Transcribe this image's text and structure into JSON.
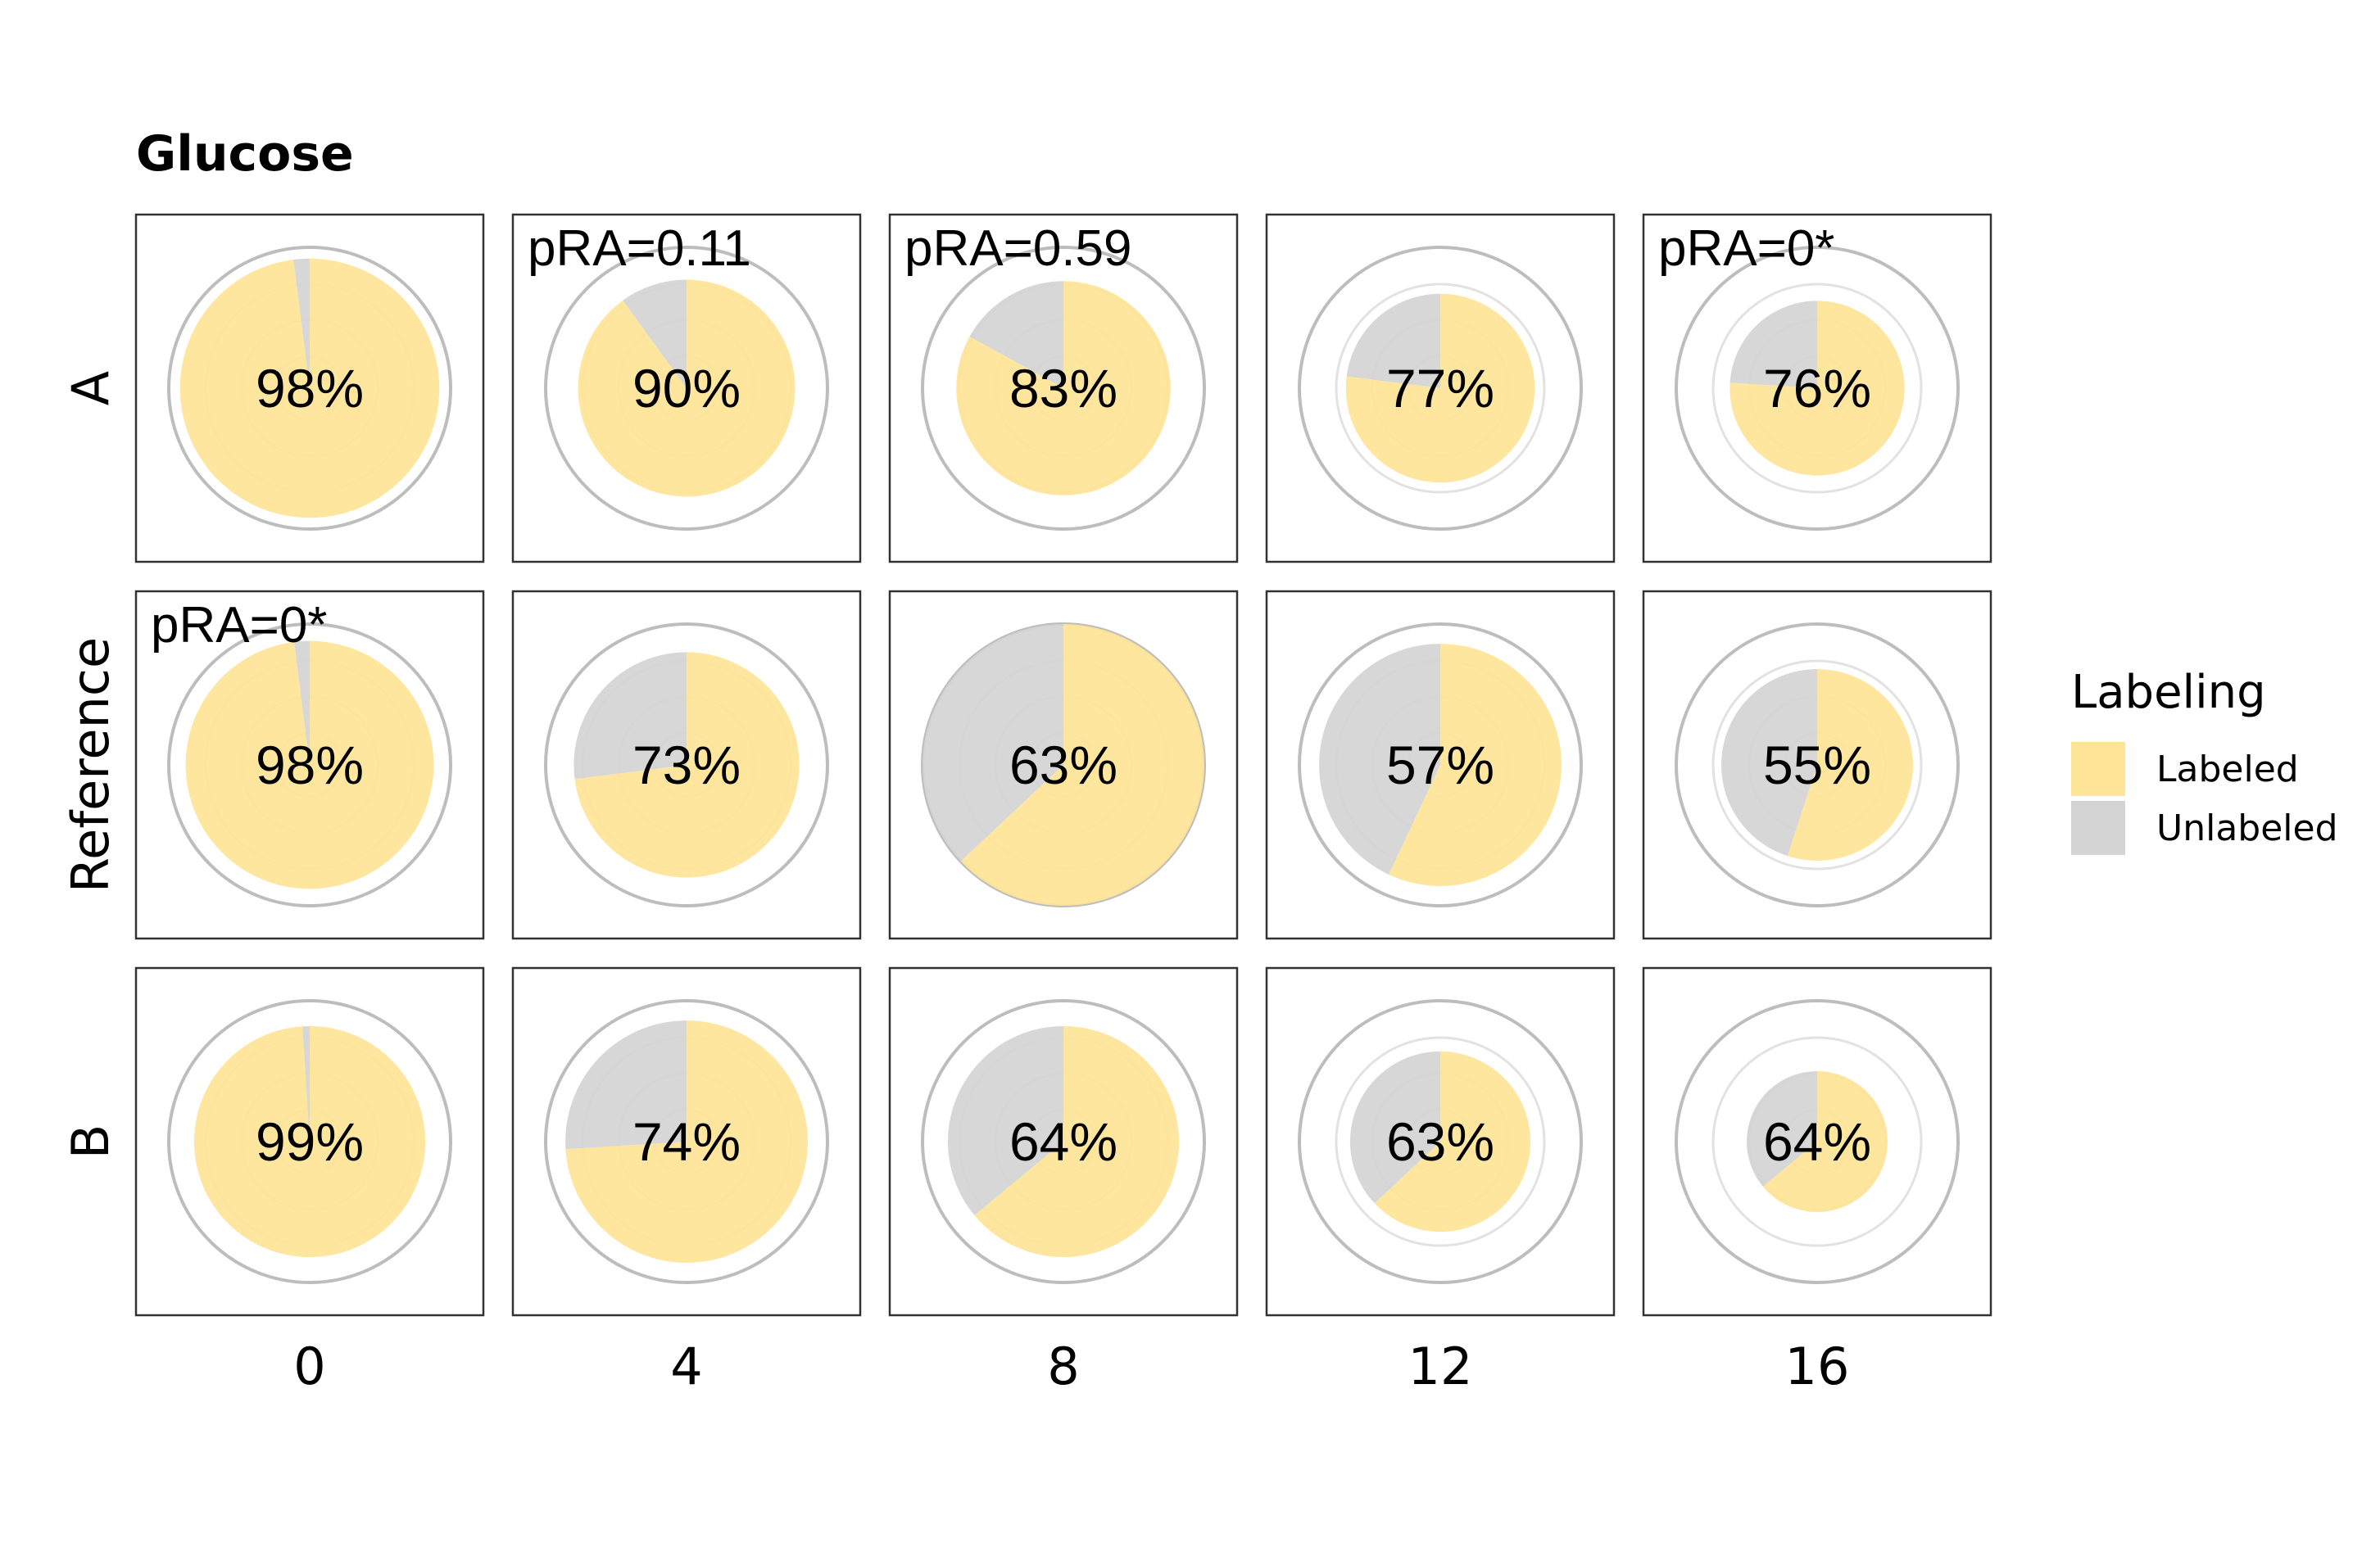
{
  "chart_data": {
    "type": "pie",
    "title": "Glucose",
    "rows": [
      "A",
      "Reference",
      "B"
    ],
    "columns": [
      "0",
      "4",
      "8",
      "12",
      "16"
    ],
    "legend": {
      "title": "Labeling",
      "position": "right",
      "items": [
        {
          "label": "Labeled",
          "color": "#FEE497"
        },
        {
          "label": "Unlabeled",
          "color": "#D4D4D4"
        }
      ]
    },
    "grid": true,
    "panels": [
      {
        "row": "A",
        "column": "0",
        "labeled_pct": 98,
        "label": "98%",
        "pra": "",
        "size": 0.92
      },
      {
        "row": "A",
        "column": "4",
        "labeled_pct": 90,
        "label": "90%",
        "pra": "pRA=0.11",
        "size": 0.77
      },
      {
        "row": "A",
        "column": "8",
        "labeled_pct": 83,
        "label": "83%",
        "pra": "pRA=0.59",
        "size": 0.76
      },
      {
        "row": "A",
        "column": "12",
        "labeled_pct": 77,
        "label": "77%",
        "pra": "",
        "size": 0.67
      },
      {
        "row": "A",
        "column": "16",
        "labeled_pct": 76,
        "label": "76%",
        "pra": "pRA=0*",
        "size": 0.62
      },
      {
        "row": "Reference",
        "column": "0",
        "labeled_pct": 98,
        "label": "98%",
        "pra": "pRA=0*",
        "size": 0.88
      },
      {
        "row": "Reference",
        "column": "4",
        "labeled_pct": 73,
        "label": "73%",
        "pra": "",
        "size": 0.8
      },
      {
        "row": "Reference",
        "column": "8",
        "labeled_pct": 63,
        "label": "63%",
        "pra": "",
        "size": 1.0
      },
      {
        "row": "Reference",
        "column": "12",
        "labeled_pct": 57,
        "label": "57%",
        "pra": "",
        "size": 0.86
      },
      {
        "row": "Reference",
        "column": "16",
        "labeled_pct": 55,
        "label": "55%",
        "pra": "",
        "size": 0.68
      },
      {
        "row": "B",
        "column": "0",
        "labeled_pct": 99,
        "label": "99%",
        "pra": "",
        "size": 0.82
      },
      {
        "row": "B",
        "column": "4",
        "labeled_pct": 74,
        "label": "74%",
        "pra": "",
        "size": 0.86
      },
      {
        "row": "B",
        "column": "8",
        "labeled_pct": 64,
        "label": "64%",
        "pra": "",
        "size": 0.82
      },
      {
        "row": "B",
        "column": "12",
        "labeled_pct": 63,
        "label": "63%",
        "pra": "",
        "size": 0.64
      },
      {
        "row": "B",
        "column": "16",
        "labeled_pct": 64,
        "label": "64%",
        "pra": "",
        "size": 0.5
      }
    ]
  }
}
